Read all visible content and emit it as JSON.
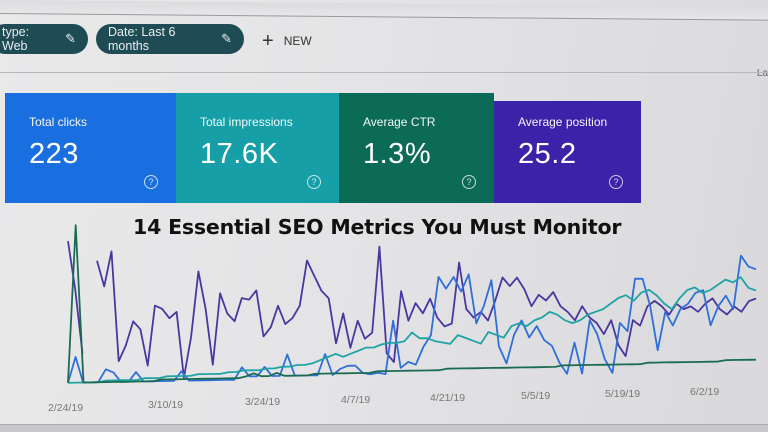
{
  "filters": {
    "chips": [
      {
        "label": "type: Web",
        "icon": "pencil-icon"
      },
      {
        "label": "Date: Last 6 months",
        "icon": "pencil-icon"
      }
    ],
    "new_button": {
      "icon": "plus-icon",
      "label": "NEW"
    },
    "right_label": "La"
  },
  "metrics": [
    {
      "label": "Total clicks",
      "value": "223",
      "color": "#1a6fe0",
      "help": "?"
    },
    {
      "label": "Total impressions",
      "value": "17.6K",
      "color": "#169fa6",
      "help": "?"
    },
    {
      "label": "Average CTR",
      "value": "1.3%",
      "color": "#0c6b56",
      "help": "?"
    },
    {
      "label": "Average position",
      "value": "25.2",
      "color": "#3b22a8",
      "help": "?"
    }
  ],
  "overlay": {
    "headline": "14 Essential SEO Metrics You Must Monitor"
  },
  "chart_data": {
    "type": "line",
    "title": "",
    "xlabel": "",
    "ylabel": "",
    "x_tick_labels": [
      "2/24/19",
      "3/10/19",
      "3/24/19",
      "4/7/19",
      "4/21/19",
      "5/5/19",
      "5/19/19",
      "6/2/19"
    ],
    "grid": false,
    "legend": "none",
    "series": [
      {
        "name": "Average position",
        "color": "#4b36a0",
        "values": [
          90,
          60,
          20,
          null,
          78,
          62,
          84,
          15,
          25,
          40,
          35,
          12,
          50,
          48,
          42,
          46,
          4,
          30,
          72,
          48,
          12,
          58,
          45,
          40,
          55,
          54,
          60,
          30,
          36,
          50,
          38,
          42,
          50,
          80,
          70,
          60,
          55,
          25,
          45,
          22,
          40,
          28,
          32,
          90,
          18,
          12,
          60,
          40,
          52,
          45,
          55,
          42,
          36,
          38,
          80,
          48,
          42,
          46,
          40,
          54,
          70,
          64,
          70,
          62,
          50,
          58,
          54,
          60,
          50,
          46,
          40,
          50,
          42,
          38,
          30,
          40,
          22,
          14,
          40,
          36,
          50,
          54,
          50,
          44,
          52,
          48,
          50,
          46,
          52,
          56,
          48,
          44,
          50,
          46,
          54,
          56
        ]
      },
      {
        "name": "Total clicks",
        "color": "#2f6fd8",
        "values": [
          2,
          18,
          2,
          2,
          2,
          10,
          8,
          2,
          2,
          8,
          2,
          2,
          2,
          2,
          2,
          8,
          2,
          2,
          2,
          2,
          2,
          2,
          2,
          10,
          4,
          4,
          10,
          4,
          4,
          18,
          4,
          4,
          4,
          4,
          18,
          4,
          8,
          10,
          10,
          5,
          4,
          5,
          4,
          40,
          8,
          12,
          10,
          22,
          30,
          70,
          62,
          70,
          60,
          72,
          38,
          50,
          68,
          22,
          10,
          30,
          40,
          28,
          36,
          26,
          22,
          10,
          2,
          24,
          2,
          40,
          30,
          12,
          2,
          38,
          32,
          70,
          70,
          50,
          18,
          46,
          36,
          48,
          52,
          60,
          62,
          36,
          50,
          58,
          48,
          88,
          80,
          78
        ]
      },
      {
        "name": "Total impressions",
        "color": "#1fa3a6",
        "values": [
          2,
          2,
          2,
          2,
          2,
          3,
          3,
          3,
          3,
          3,
          4,
          4,
          4,
          5,
          5,
          5,
          5,
          6,
          6,
          6,
          6,
          7,
          7,
          8,
          8,
          8,
          9,
          9,
          10,
          10,
          11,
          11,
          12,
          14,
          16,
          18,
          16,
          18,
          20,
          22,
          22,
          24,
          25,
          25,
          26,
          32,
          28,
          28,
          26,
          25,
          24,
          30,
          28,
          26,
          24,
          32,
          30,
          28,
          36,
          38,
          36,
          40,
          42,
          46,
          44,
          40,
          38,
          40,
          44,
          46,
          48,
          52,
          56,
          58,
          54,
          60,
          62,
          58,
          52,
          48,
          56,
          62,
          64,
          60,
          62,
          66,
          70,
          68,
          72,
          64,
          62
        ]
      },
      {
        "name": "Average CTR",
        "color": "#1b6b52",
        "values": [
          2,
          100,
          2,
          2,
          2,
          2,
          2,
          2,
          2,
          2,
          2,
          2,
          3,
          3,
          3,
          3,
          3,
          3,
          3,
          3,
          3,
          3,
          3,
          4,
          6,
          4,
          4,
          6,
          4,
          4,
          4,
          4,
          5,
          5,
          5,
          5,
          5,
          5,
          5,
          5,
          6,
          6,
          6,
          6,
          6,
          6,
          6,
          6,
          6,
          7,
          7,
          7,
          7,
          7,
          7,
          7,
          7,
          7,
          7,
          7,
          7,
          7,
          7,
          7,
          8,
          8,
          8,
          8,
          8,
          8,
          8,
          8,
          8,
          8,
          8,
          9,
          9,
          9,
          9,
          9,
          9,
          9,
          9,
          9,
          9,
          10,
          10,
          10,
          10,
          10
        ]
      }
    ]
  }
}
